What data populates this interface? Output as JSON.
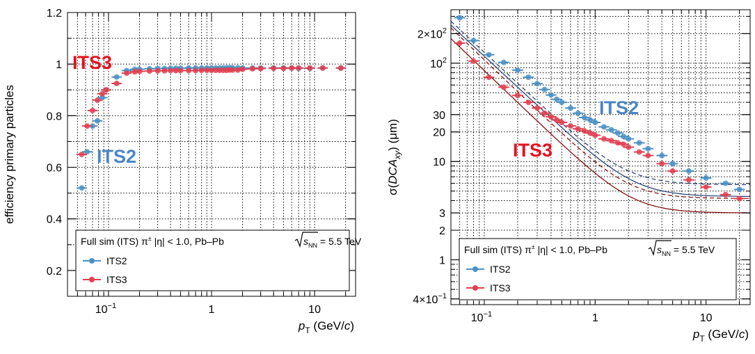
{
  "colors": {
    "its2": "#4a90c4",
    "its3": "#e04050",
    "its2_tag": "#4a86c5",
    "its3_tag": "#e8101e",
    "its3_line": "#800000"
  },
  "chart_data": [
    {
      "type": "scatter",
      "title": "",
      "xlabel": {
        "var": "p",
        "sub": "T",
        "unit": " (GeV/",
        "unit_it": "c",
        "close": ")"
      },
      "ylabel": "efficiency primary particles",
      "xscale": "log",
      "xlim": [
        0.04,
        25
      ],
      "ylim": [
        0.1,
        1.2
      ],
      "x_ticks": [
        {
          "v": 0.1,
          "base": "10",
          "exp": "−1"
        },
        {
          "v": 1,
          "label": "1"
        },
        {
          "v": 10,
          "label": "10"
        }
      ],
      "y_ticks": [
        {
          "v": 0.2,
          "label": "0.2"
        },
        {
          "v": 0.4,
          "label": "0.4"
        },
        {
          "v": 0.6,
          "label": "0.6"
        },
        {
          "v": 0.8,
          "label": "0.8"
        },
        {
          "v": 1.0,
          "label": "1"
        },
        {
          "v": 1.2,
          "label": "1.2"
        }
      ],
      "legend": {
        "header": {
          "pre": "Full sim (ITS) π",
          "pm": "±",
          "eta": " |η| < 1.0, Pb–Pb ",
          "s": "s",
          "nn": "NN",
          "post": " = 5.5 TeV"
        },
        "entries": [
          "ITS2",
          "ITS3"
        ],
        "position": "bottom"
      },
      "annotations": [
        {
          "text": "ITS3",
          "series": "ITS3"
        },
        {
          "text": "ITS2",
          "series": "ITS2"
        }
      ],
      "series": [
        {
          "name": "ITS2",
          "x": [
            0.055,
            0.062,
            0.07,
            0.078,
            0.087,
            0.095,
            0.12,
            0.15,
            0.18,
            0.2,
            0.25,
            0.3,
            0.35,
            0.4,
            0.45,
            0.5,
            0.6,
            0.7,
            0.8,
            0.9,
            1.0,
            1.1,
            1.2,
            1.3,
            1.4,
            1.5,
            1.6,
            1.8,
            2.0,
            2.5,
            3.0,
            4.0,
            5.0,
            6.0,
            7.0,
            9.0,
            12.0,
            18.0
          ],
          "y": [
            0.52,
            0.66,
            0.76,
            0.78,
            0.87,
            0.9,
            0.95,
            0.975,
            0.98,
            0.98,
            0.982,
            0.983,
            0.983,
            0.984,
            0.984,
            0.984,
            0.985,
            0.985,
            0.985,
            0.985,
            0.985,
            0.985,
            0.985,
            0.985,
            0.986,
            0.986,
            0.986,
            0.986,
            0.985,
            0.985,
            0.985,
            0.985,
            0.985,
            0.985,
            0.984,
            0.984,
            0.985,
            0.985
          ]
        },
        {
          "name": "ITS3",
          "x": [
            0.055,
            0.062,
            0.07,
            0.078,
            0.087,
            0.095,
            0.12,
            0.15,
            0.18,
            0.2,
            0.25,
            0.3,
            0.35,
            0.4,
            0.45,
            0.5,
            0.6,
            0.7,
            0.8,
            0.9,
            1.0,
            1.1,
            1.2,
            1.3,
            1.4,
            1.5,
            1.6,
            1.8,
            2.0,
            2.5,
            3.0,
            4.0,
            5.0,
            6.0,
            7.0,
            9.0,
            12.0,
            18.0
          ],
          "y": [
            0.65,
            0.76,
            0.82,
            0.86,
            0.885,
            0.9,
            0.925,
            0.965,
            0.97,
            0.972,
            0.973,
            0.974,
            0.974,
            0.975,
            0.975,
            0.975,
            0.975,
            0.975,
            0.976,
            0.976,
            0.976,
            0.976,
            0.976,
            0.976,
            0.976,
            0.977,
            0.977,
            0.977,
            0.98,
            0.982,
            0.983,
            0.984,
            0.984,
            0.985,
            0.985,
            0.985,
            0.985,
            0.985
          ]
        }
      ]
    },
    {
      "type": "scatter",
      "title": "",
      "xlabel": {
        "var": "p",
        "sub": "T",
        "unit": " (GeV/",
        "unit_it": "c",
        "close": ")"
      },
      "ylabel": {
        "pre": "σ(",
        "it": "DCA",
        "sub": "xy",
        "post": ") (μm)"
      },
      "xscale": "log",
      "yscale": "log",
      "xlim": [
        0.05,
        25
      ],
      "ylim": [
        0.35,
        350
      ],
      "x_ticks": [
        {
          "v": 0.1,
          "base": "10",
          "exp": "−1"
        },
        {
          "v": 1,
          "label": "1"
        },
        {
          "v": 10,
          "label": "10"
        }
      ],
      "y_ticks": [
        {
          "v": 0.4,
          "base": "4×10",
          "exp": "−1"
        },
        {
          "v": 1,
          "label": "1"
        },
        {
          "v": 2,
          "label": "2"
        },
        {
          "v": 3,
          "label": "3"
        },
        {
          "v": 10,
          "label": "10"
        },
        {
          "v": 20,
          "label": "20"
        },
        {
          "v": 30,
          "label": "30"
        },
        {
          "v": 100,
          "base": "10",
          "exp": "2"
        },
        {
          "v": 200,
          "base": "2×10",
          "exp": "2"
        }
      ],
      "legend": {
        "header": {
          "pre": "Full sim (ITS) π",
          "pm": "±",
          "eta": " |η| < 1.0, Pb–Pb ",
          "s": "s",
          "nn": "NN",
          "post": " = 5.5 TeV"
        },
        "entries": [
          "ITS2",
          "ITS3"
        ],
        "position": "bottom"
      },
      "annotations": [
        {
          "text": "ITS2",
          "series": "ITS2"
        },
        {
          "text": "ITS3",
          "series": "ITS3"
        }
      ],
      "series": [
        {
          "name": "ITS2",
          "x": [
            0.06,
            0.08,
            0.11,
            0.15,
            0.2,
            0.25,
            0.3,
            0.35,
            0.4,
            0.45,
            0.5,
            0.6,
            0.7,
            0.8,
            0.9,
            1.0,
            1.2,
            1.4,
            1.6,
            1.8,
            2.0,
            2.5,
            3.0,
            4.0,
            5.0,
            7.0,
            10.0,
            15.0,
            20.0
          ],
          "y": [
            290,
            170,
            122,
            102,
            85,
            72,
            62,
            54,
            47.5,
            43,
            40,
            35,
            31,
            28,
            26.5,
            25,
            22.5,
            21,
            19.5,
            18,
            17,
            15.5,
            13.5,
            11.5,
            9.5,
            8.0,
            6.8,
            6.0,
            5.2
          ]
        },
        {
          "name": "ITS3",
          "x": [
            0.06,
            0.08,
            0.11,
            0.15,
            0.2,
            0.25,
            0.3,
            0.35,
            0.4,
            0.45,
            0.5,
            0.6,
            0.7,
            0.8,
            0.9,
            1.0,
            1.2,
            1.4,
            1.6,
            1.8,
            2.0,
            2.5,
            3.0,
            4.0,
            5.0,
            7.0,
            10.0,
            15.0,
            20.0
          ],
          "y": [
            160,
            105,
            72,
            57,
            47,
            40,
            35,
            31,
            28.5,
            26.5,
            25,
            23,
            21.5,
            20.5,
            19.5,
            18.5,
            17,
            16.3,
            15.5,
            15,
            14,
            12.5,
            11.5,
            9.5,
            8.0,
            6.5,
            5.5,
            4.6,
            4.2
          ]
        }
      ]
    }
  ]
}
